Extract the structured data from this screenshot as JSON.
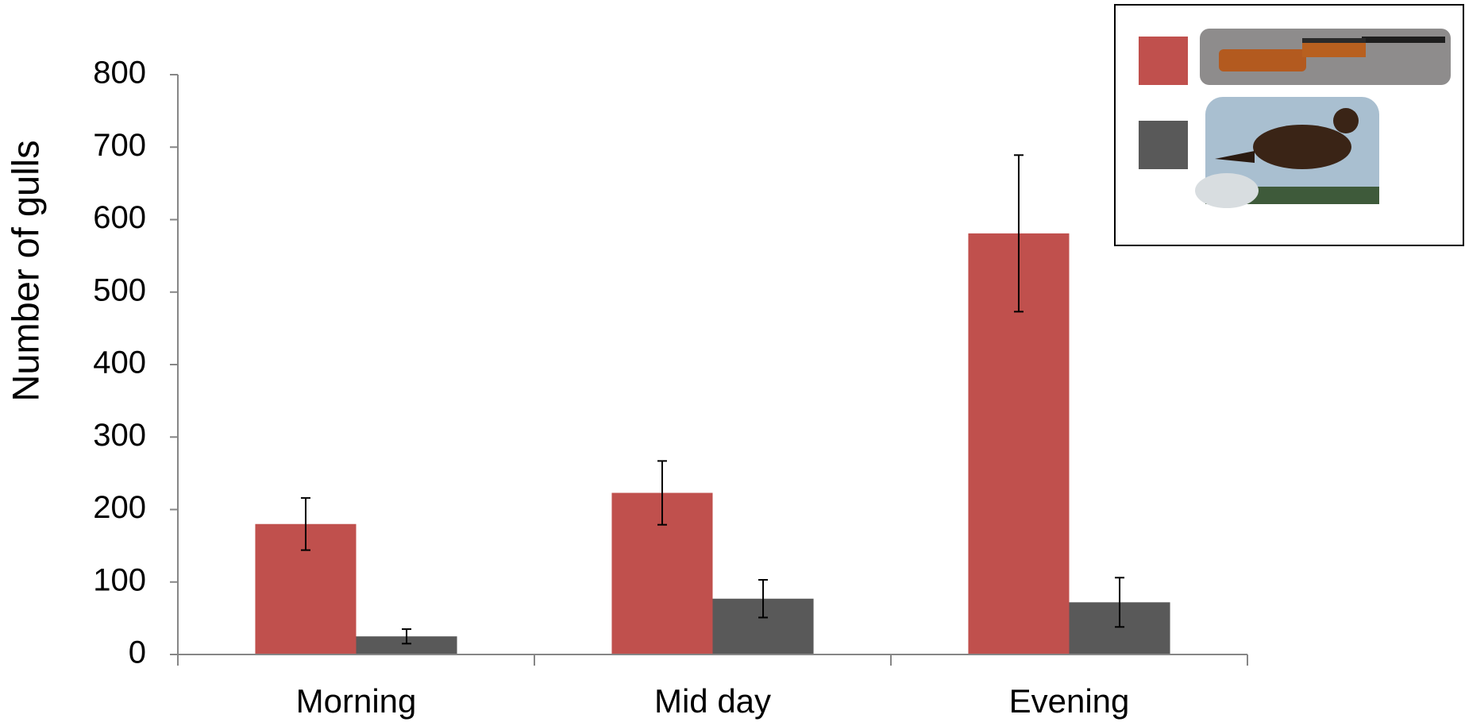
{
  "chart_data": {
    "type": "bar",
    "y_label": "Number of gulls",
    "categories": [
      "Morning",
      "Mid day",
      "Evening"
    ],
    "series": [
      {
        "color": "#c0504d",
        "values": [
          180,
          223,
          581
        ],
        "errors": [
          36,
          44,
          108
        ]
      },
      {
        "color": "#595959",
        "values": [
          25,
          77,
          72
        ],
        "errors": [
          10,
          26,
          34
        ]
      }
    ],
    "ylim": [
      0,
      800
    ],
    "yticks": [
      0,
      100,
      200,
      300,
      400,
      500,
      600,
      700,
      800
    ],
    "grid": false
  }
}
